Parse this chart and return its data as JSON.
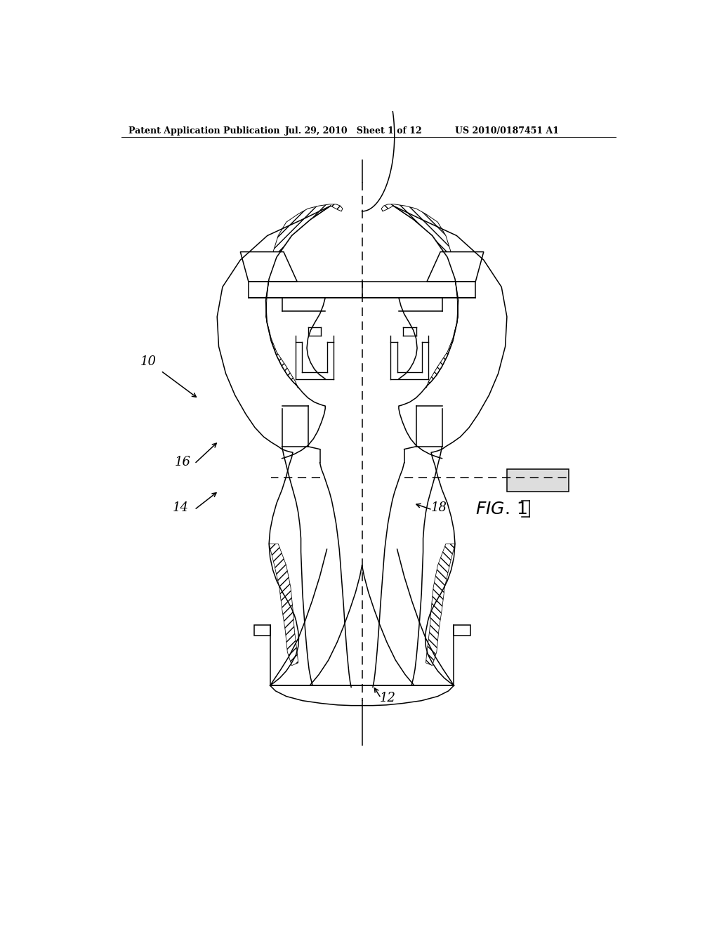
{
  "bg_color": "#ffffff",
  "line_color": "#000000",
  "header_left": "Patent Application Publication",
  "header_mid": "Jul. 29, 2010   Sheet 1 of 12",
  "header_right": "US 2010/0187451 A1",
  "fig_label": "FIG. 1",
  "label_10": "10",
  "label_12": "12",
  "label_14": "14",
  "label_16": "16",
  "label_18": "18",
  "line_width": 1.1
}
